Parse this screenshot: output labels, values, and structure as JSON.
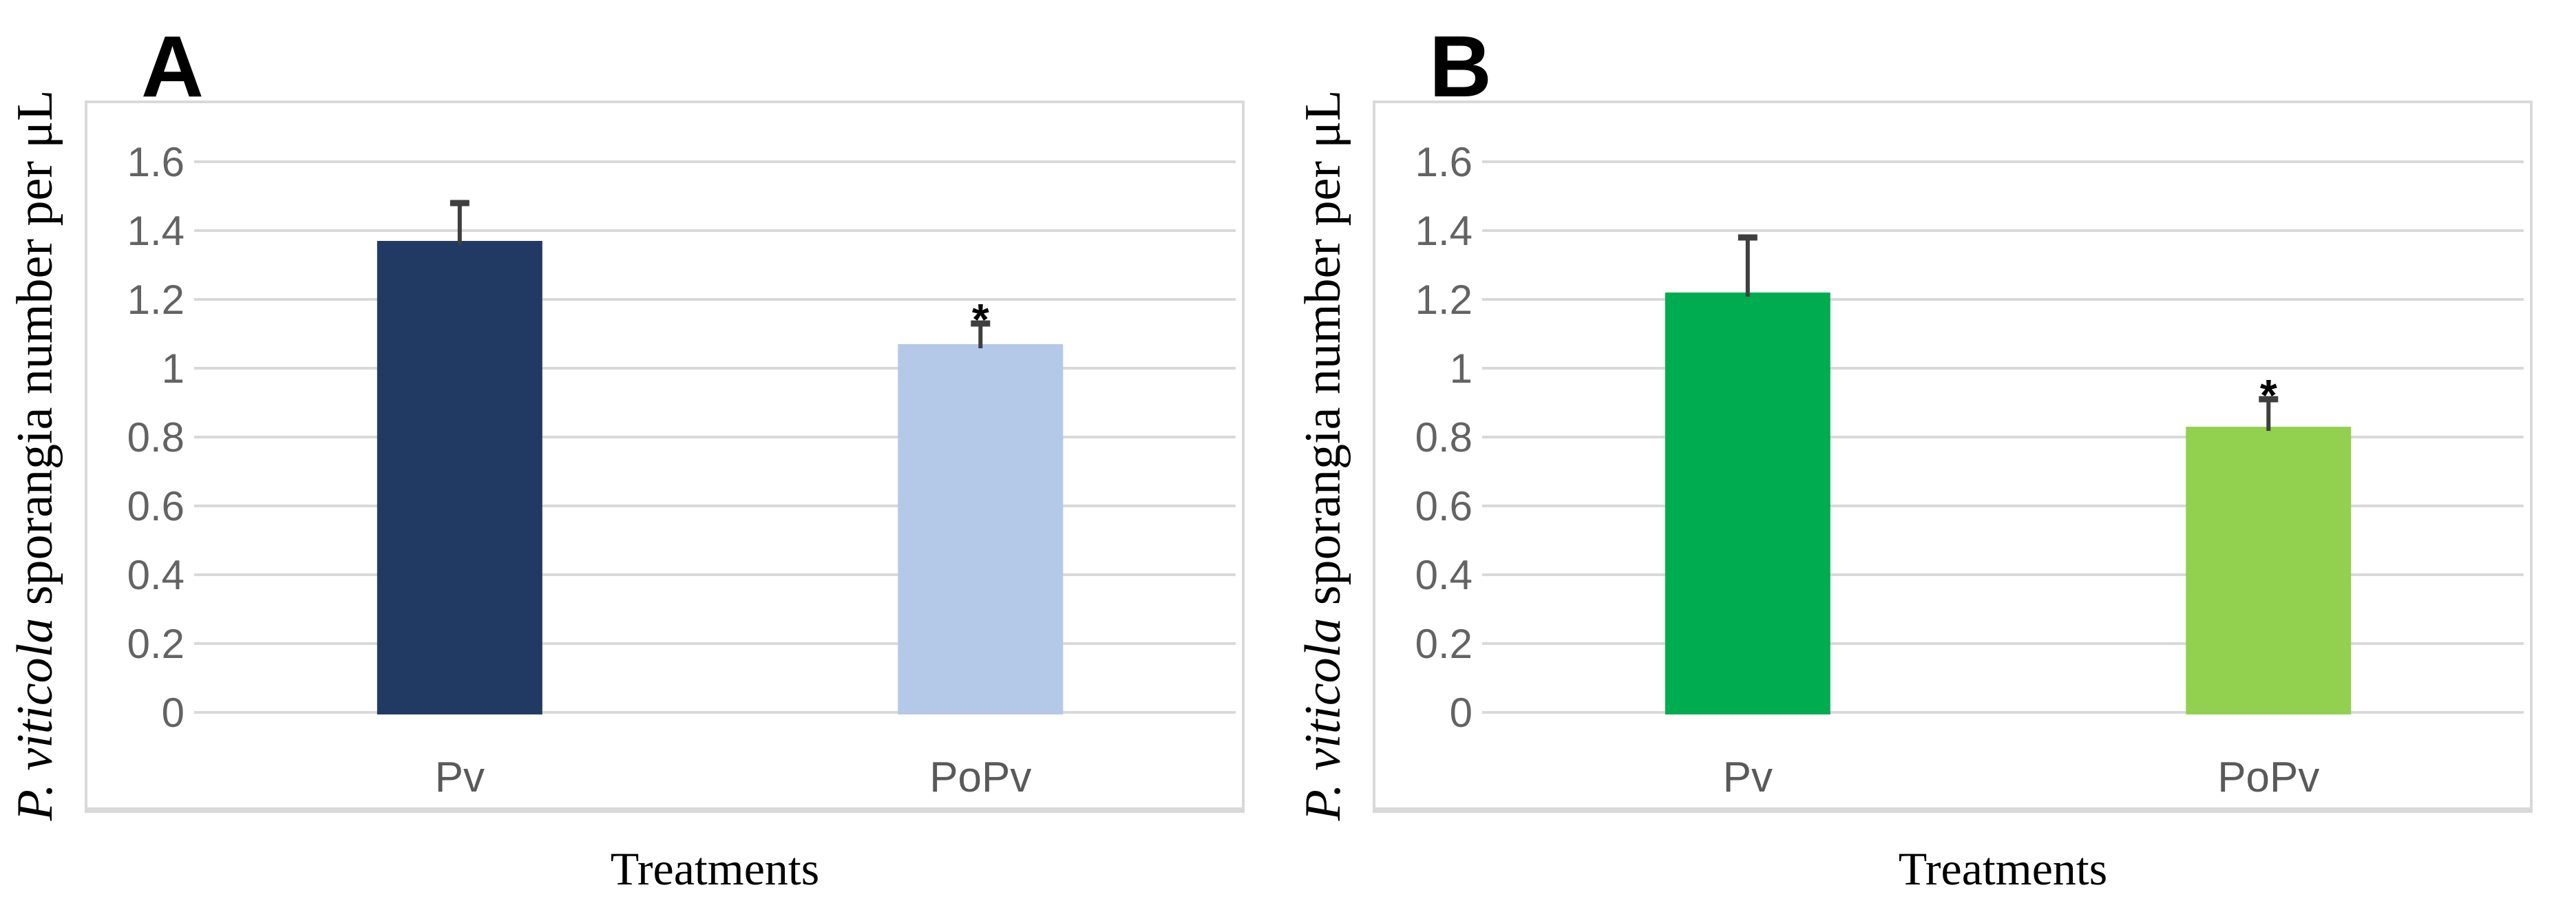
{
  "figure": {
    "background": "#FFFFFF"
  },
  "styles": {
    "grid_color": "#D9D9D9",
    "border_color": "#D9D9D9",
    "tick_label_color": "#636363",
    "category_label_color": "#595959",
    "error_bar_color": "#3F3F3F",
    "axis_title_color": "#000000",
    "panel_letter_color": "#000000",
    "significance_color": "#000000"
  },
  "chart_data": [
    {
      "type": "bar",
      "panel_label": "A",
      "categories": [
        "Pv",
        "PoPv"
      ],
      "values": [
        1.37,
        1.07
      ],
      "error_upper": [
        0.11,
        0.06
      ],
      "significance": [
        "",
        "*"
      ],
      "bar_colors": [
        "#203A63",
        "#B4C8E8"
      ],
      "xlabel": "Treatments",
      "ylabel_italic": "P. viticola",
      "ylabel_regular": " sporangia number per μL",
      "ylim": [
        0,
        1.6
      ],
      "ytick_values": [
        0,
        0.2,
        0.4,
        0.6,
        0.8,
        1,
        1.2,
        1.4,
        1.6
      ],
      "ytick_labels": [
        "0",
        "0.2",
        "0.4",
        "0.6",
        "0.8",
        "1",
        "1.2",
        "1.4",
        "1.6"
      ],
      "grid": true,
      "legend": false
    },
    {
      "type": "bar",
      "panel_label": "B",
      "categories": [
        "Pv",
        "PoPv"
      ],
      "values": [
        1.22,
        0.83
      ],
      "error_upper": [
        0.16,
        0.08
      ],
      "significance": [
        "",
        "*"
      ],
      "bar_colors": [
        "#00AC50",
        "#92D050"
      ],
      "xlabel": "Treatments",
      "ylabel_italic": "P. viticola",
      "ylabel_regular": " sporangia number per μL",
      "ylim": [
        0,
        1.6
      ],
      "ytick_values": [
        0,
        0.2,
        0.4,
        0.6,
        0.8,
        1,
        1.2,
        1.4,
        1.6
      ],
      "ytick_labels": [
        "0",
        "0.2",
        "0.4",
        "0.6",
        "0.8",
        "1",
        "1.2",
        "1.4",
        "1.6"
      ],
      "grid": true,
      "legend": false
    }
  ]
}
